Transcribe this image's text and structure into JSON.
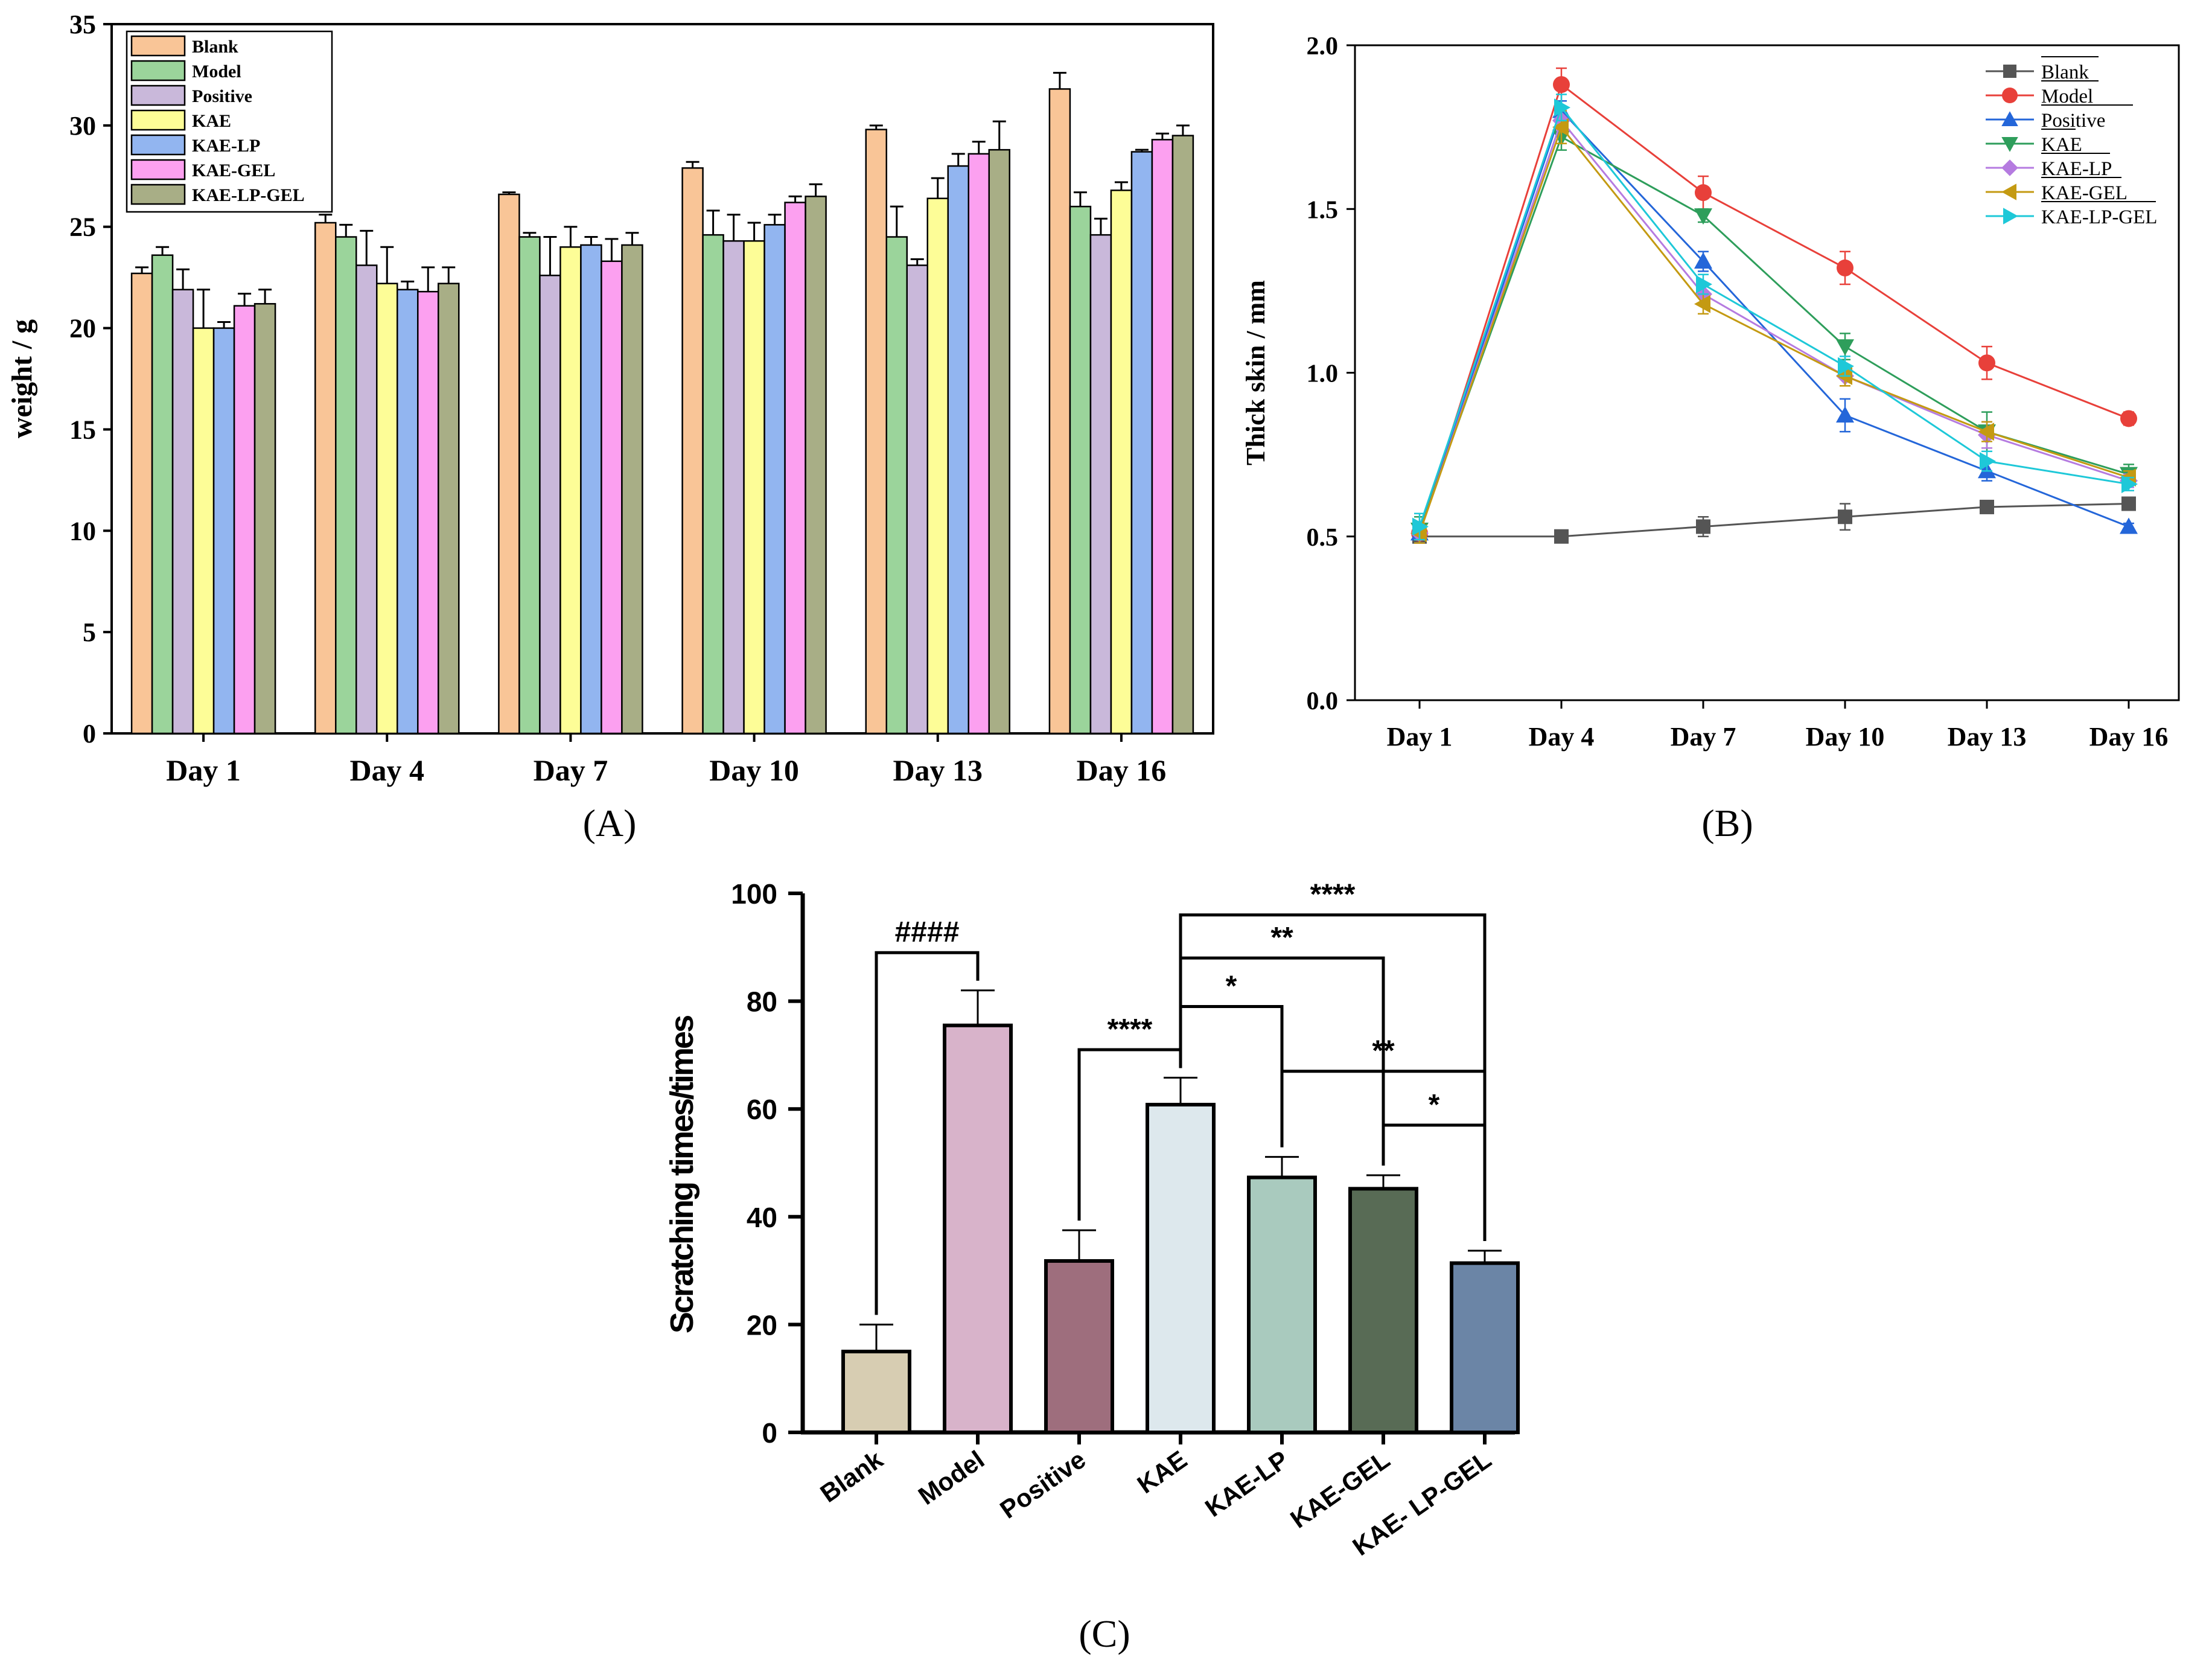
{
  "chart_data": [
    {
      "id": "A",
      "type": "bar",
      "panel_label": "(A)",
      "ylabel": "weight / g",
      "xlabel": "",
      "ylim": [
        0,
        35
      ],
      "yticks": [
        "0",
        "5",
        "10",
        "15",
        "20",
        "25",
        "30",
        "35"
      ],
      "categories": [
        "Day 1",
        "Day 4",
        "Day 7",
        "Day 10",
        "Day 13",
        "Day 16"
      ],
      "legend_position": "top-left",
      "series": [
        {
          "name": "Blank",
          "color": "#F9C597",
          "values": [
            22.7,
            25.2,
            26.6,
            27.9,
            29.8,
            31.8
          ],
          "errors": [
            0.3,
            0.4,
            0.1,
            0.3,
            0.2,
            0.8
          ]
        },
        {
          "name": "Model",
          "color": "#9BD49B",
          "values": [
            23.6,
            24.5,
            24.5,
            24.6,
            24.5,
            26.0
          ],
          "errors": [
            0.4,
            0.6,
            0.2,
            1.2,
            1.5,
            0.7
          ]
        },
        {
          "name": "Positive",
          "color": "#C9B8DA",
          "values": [
            21.9,
            23.1,
            22.6,
            24.3,
            23.1,
            24.6
          ],
          "errors": [
            1.0,
            1.7,
            1.9,
            1.3,
            0.3,
            0.8
          ]
        },
        {
          "name": "KAE",
          "color": "#FDFD97",
          "values": [
            20.0,
            22.2,
            24.0,
            24.3,
            26.4,
            26.8
          ],
          "errors": [
            1.9,
            1.8,
            1.0,
            0.9,
            1.0,
            0.4
          ]
        },
        {
          "name": "KAE-LP",
          "color": "#92B5F0",
          "values": [
            20.0,
            21.9,
            24.1,
            25.1,
            28.0,
            28.7
          ],
          "errors": [
            0.3,
            0.4,
            0.4,
            0.5,
            0.6,
            0.1
          ]
        },
        {
          "name": "KAE-GEL",
          "color": "#FCA0F0",
          "values": [
            21.1,
            21.8,
            23.3,
            26.2,
            28.6,
            29.3
          ],
          "errors": [
            0.6,
            1.2,
            1.1,
            0.3,
            0.6,
            0.3
          ]
        },
        {
          "name": "KAE-LP-GEL",
          "color": "#A8AE86",
          "values": [
            21.2,
            22.2,
            24.1,
            26.5,
            28.8,
            29.5
          ],
          "errors": [
            0.7,
            0.8,
            0.6,
            0.6,
            1.4,
            0.5
          ]
        }
      ]
    },
    {
      "id": "B",
      "type": "line",
      "panel_label": "(B)",
      "ylabel": "Thick skin / mm",
      "xlabel": "",
      "ylim": [
        0.0,
        2.0
      ],
      "yticks": [
        "0.0",
        "0.5",
        "1.0",
        "1.5",
        "2.0"
      ],
      "x": [
        "Day 1",
        "Day 4",
        "Day 7",
        "Day 10",
        "Day 13",
        "Day 16"
      ],
      "legend_position": "top-right",
      "series": [
        {
          "name": "Blank",
          "color": "#555555",
          "marker": "square",
          "values": [
            0.5,
            0.5,
            0.53,
            0.56,
            0.59,
            0.6
          ],
          "errors": [
            0.01,
            0.01,
            0.03,
            0.04,
            0.01,
            0.01
          ]
        },
        {
          "name": "Model",
          "color": "#E8403A",
          "marker": "circle",
          "values": [
            0.51,
            1.88,
            1.55,
            1.32,
            1.03,
            0.86
          ],
          "errors": [
            0.02,
            0.05,
            0.05,
            0.05,
            0.05,
            0.02
          ]
        },
        {
          "name": "Positive",
          "color": "#2466D9",
          "marker": "triangle-up",
          "values": [
            0.51,
            1.8,
            1.34,
            0.87,
            0.7,
            0.53
          ],
          "errors": [
            0.03,
            0.03,
            0.03,
            0.05,
            0.03,
            0.01
          ]
        },
        {
          "name": "KAE",
          "color": "#2E9E5B",
          "marker": "triangle-down",
          "values": [
            0.52,
            1.72,
            1.48,
            1.08,
            0.82,
            0.69
          ],
          "errors": [
            0.04,
            0.04,
            0.02,
            0.04,
            0.06,
            0.03
          ]
        },
        {
          "name": "KAE-LP",
          "color": "#B57BE0",
          "marker": "diamond",
          "values": [
            0.51,
            1.77,
            1.24,
            0.99,
            0.81,
            0.67
          ],
          "errors": [
            0.03,
            0.03,
            0.03,
            0.03,
            0.04,
            0.02
          ]
        },
        {
          "name": "KAE-GEL",
          "color": "#C49A12",
          "marker": "triangle-left",
          "values": [
            0.51,
            1.75,
            1.21,
            0.99,
            0.82,
            0.68
          ],
          "errors": [
            0.03,
            0.05,
            0.03,
            0.03,
            0.03,
            0.02
          ]
        },
        {
          "name": "KAE-LP-GEL",
          "color": "#1EC8D8",
          "marker": "triangle-right",
          "values": [
            0.53,
            1.81,
            1.27,
            1.02,
            0.73,
            0.66
          ],
          "errors": [
            0.04,
            0.04,
            0.03,
            0.03,
            0.03,
            0.02
          ]
        }
      ]
    },
    {
      "id": "C",
      "type": "bar",
      "panel_label": "(C)",
      "ylabel": "Scratching times/times",
      "xlabel": "",
      "ylim": [
        0,
        100
      ],
      "yticks": [
        "0",
        "20",
        "40",
        "60",
        "80",
        "100"
      ],
      "categories": [
        "Blank",
        "Model",
        "Positive",
        "KAE",
        "KAE-LP",
        "KAE-GEL",
        "KAE- LP-GEL"
      ],
      "values": [
        15.0,
        75.5,
        31.8,
        60.8,
        47.3,
        45.2,
        31.4
      ],
      "errors": [
        5.0,
        6.5,
        5.7,
        5.0,
        3.8,
        2.5,
        2.3
      ],
      "colors": [
        "#D7CDB2",
        "#D8B3CA",
        "#9E6E7D",
        "#DDE8ED",
        "#A9CABE",
        "#586B55",
        "#6B85A6"
      ],
      "annotations": [
        {
          "from": 0,
          "to": 1,
          "level": 89,
          "text": "####"
        },
        {
          "from": 2,
          "to": 3,
          "level": 71,
          "text": "****"
        },
        {
          "from": 3,
          "to": 4,
          "level": 79,
          "text": "*"
        },
        {
          "from": 3,
          "to": 5,
          "level": 88,
          "text": "**"
        },
        {
          "from": 3,
          "to": 6,
          "level": 96,
          "text": "****"
        },
        {
          "from": 4,
          "to": 6,
          "level": 67,
          "text": "**"
        },
        {
          "from": 5,
          "to": 6,
          "level": 57,
          "text": "*"
        }
      ]
    }
  ]
}
